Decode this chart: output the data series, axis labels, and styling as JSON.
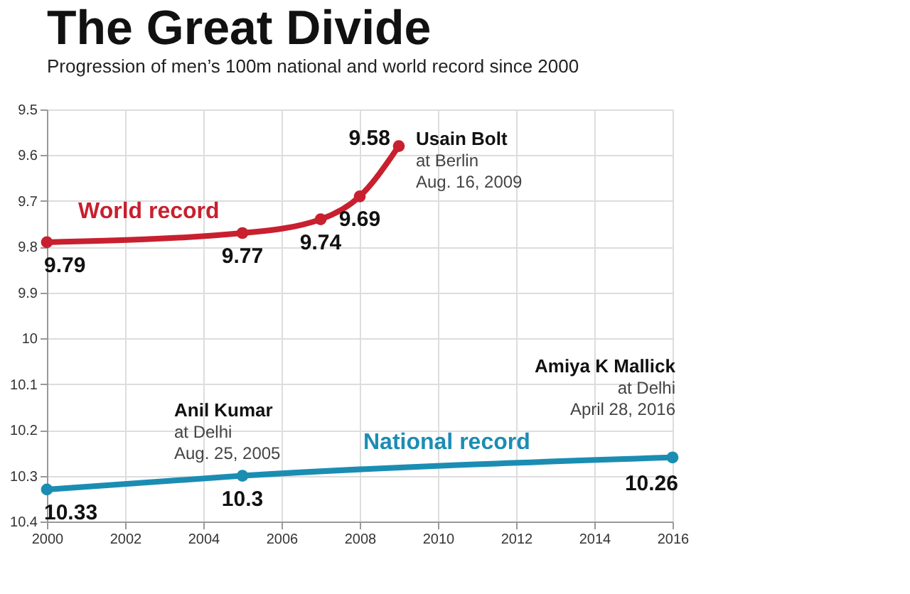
{
  "chart_data": {
    "type": "line",
    "title": "The Great Divide",
    "subtitle": "Progression of men’s 100m national and world record since 2000",
    "series": [
      {
        "name": "World record",
        "color": "#c8202f",
        "x": [
          2000,
          2005,
          2007,
          2008,
          2009
        ],
        "values": [
          9.79,
          9.77,
          9.74,
          9.69,
          9.58
        ]
      },
      {
        "name": "National record",
        "color": "#1b8db3",
        "x": [
          2000,
          2005,
          2016
        ],
        "values": [
          10.33,
          10.3,
          10.26
        ]
      }
    ],
    "xlim": [
      2000,
      2016
    ],
    "xticks": [
      2000,
      2002,
      2004,
      2006,
      2008,
      2010,
      2012,
      2014,
      2016
    ],
    "ylim": [
      10.4,
      9.5
    ],
    "yticks": [
      9.5,
      9.6,
      9.7,
      9.8,
      9.9,
      10,
      10.1,
      10.2,
      10.3,
      10.4
    ],
    "grid": true,
    "marker": "circle",
    "line_style": "solid",
    "data_labels": true,
    "legend": false,
    "annotations": [
      {
        "text": "Usain Bolt\nat Berlin\nAug. 16, 2009",
        "x": 2009,
        "y": 9.58
      },
      {
        "text": "Anil Kumar\nat Delhi\nAug. 25, 2005",
        "x": 2005,
        "y": 10.3
      },
      {
        "text": "Amiya K Mallick\nat Delhi\nApril 28, 2016",
        "x": 2016,
        "y": 10.26
      }
    ]
  }
}
